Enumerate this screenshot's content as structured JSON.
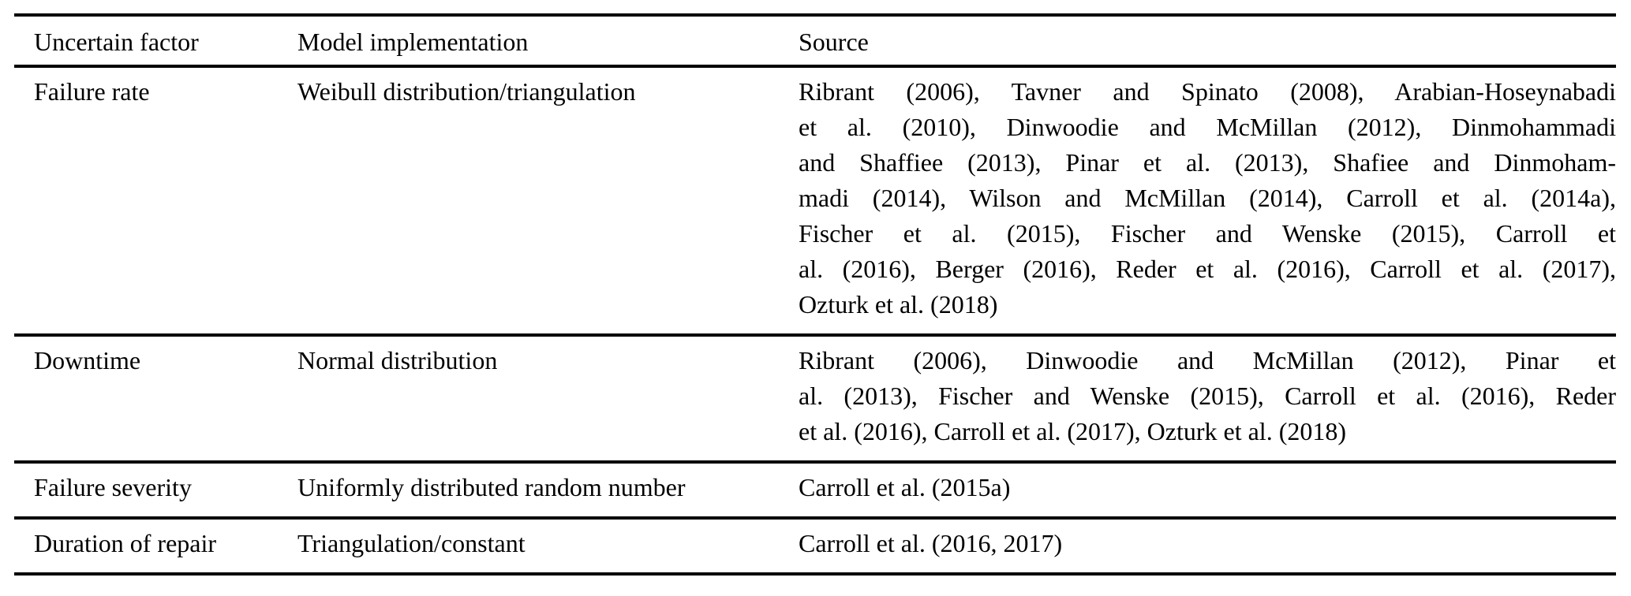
{
  "table": {
    "text_color": "#000000",
    "rule_color": "#000000",
    "background_color": "#ffffff",
    "columns": [
      "Uncertain factor",
      "Model implementation",
      "Source"
    ],
    "rows": [
      {
        "factor": "Failure rate",
        "implementation": "Weibull distribution/triangulation",
        "source_lines": [
          "Ribrant (2006), Tavner and Spinato (2008), Arabian-Hoseynabadi",
          "et al. (2010), Dinwoodie and McMillan (2012), Dinmohammadi",
          "and Shaffiee (2013), Pinar et al. (2013), Shafiee and Dinmoham-",
          "madi (2014), Wilson and McMillan (2014), Carroll et al. (2014a),",
          "Fischer et al. (2015), Fischer and Wenske (2015), Carroll et",
          "al. (2016), Berger (2016), Reder et al. (2016), Carroll et al. (2017),",
          "Ozturk et al. (2018)"
        ]
      },
      {
        "factor": "Downtime",
        "implementation": "Normal distribution",
        "source_lines": [
          "Ribrant (2006), Dinwoodie and McMillan (2012), Pinar et",
          "al. (2013), Fischer and Wenske (2015), Carroll et al. (2016), Reder",
          "et al. (2016), Carroll et al. (2017), Ozturk et al. (2018)"
        ]
      },
      {
        "factor": "Failure severity",
        "implementation": "Uniformly distributed random number",
        "source_lines": [
          "Carroll et al. (2015a)"
        ]
      },
      {
        "factor": "Duration of repair",
        "implementation": "Triangulation/constant",
        "source_lines": [
          "Carroll et al. (2016, 2017)"
        ]
      }
    ]
  }
}
